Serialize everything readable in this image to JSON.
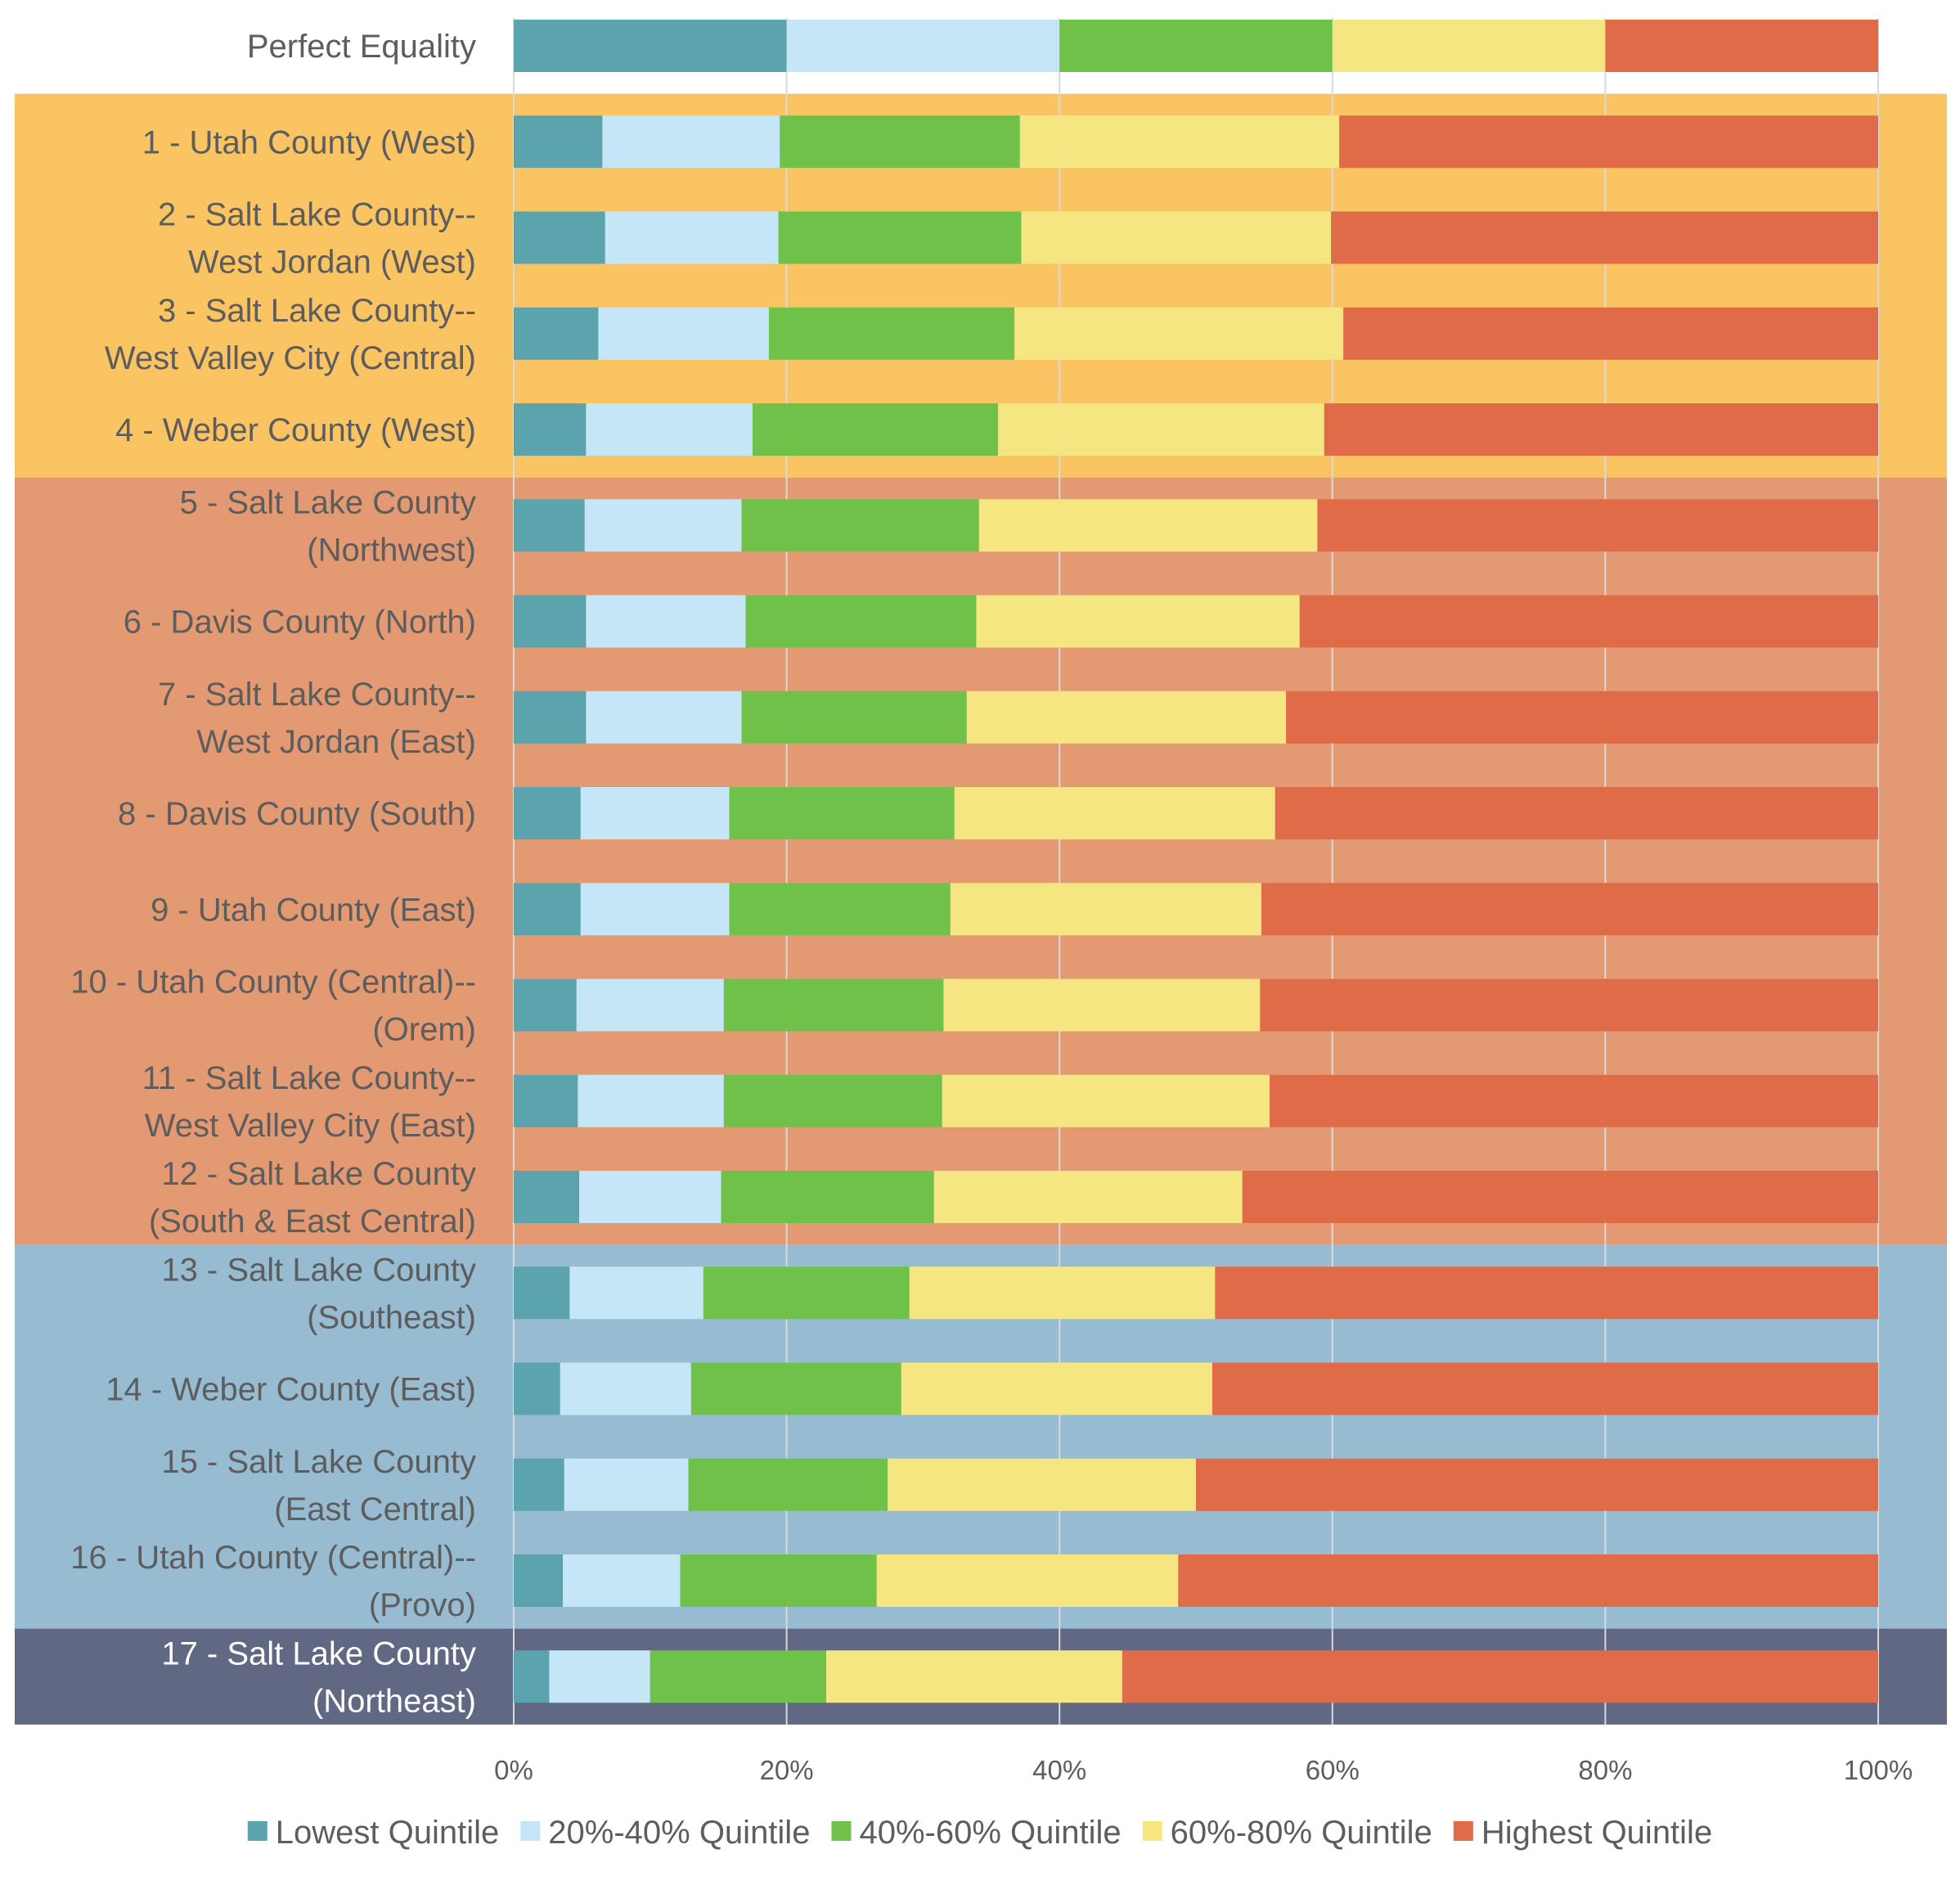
{
  "chart_data": {
    "type": "bar",
    "orientation": "horizontal",
    "stacked": true,
    "title": "",
    "xlabel": "",
    "ylabel": "",
    "xlim": [
      0,
      100
    ],
    "x_ticks": [
      "0%",
      "20%",
      "40%",
      "60%",
      "80%",
      "100%"
    ],
    "grid": true,
    "legend_position": "bottom",
    "categories": [
      [
        "Perfect Equality"
      ],
      [
        "1 - Utah County (West)"
      ],
      [
        "2 - Salt Lake County--",
        "West Jordan (West)"
      ],
      [
        "3 - Salt Lake County--",
        "West Valley City (Central)"
      ],
      [
        "4 - Weber County (West)"
      ],
      [
        "5 - Salt Lake County",
        "(Northwest)"
      ],
      [
        "6 - Davis County (North)"
      ],
      [
        "7 - Salt Lake County--",
        "West Jordan (East)"
      ],
      [
        "8 - Davis County (South)"
      ],
      [
        "9 - Utah County (East)"
      ],
      [
        "10 - Utah County (Central)--",
        "(Orem)"
      ],
      [
        "11 - Salt Lake County--",
        "West Valley City (East)"
      ],
      [
        "12 - Salt Lake County",
        "(South & East Central)"
      ],
      [
        "13 - Salt Lake County",
        "(Southeast)"
      ],
      [
        "14 - Weber County (East)"
      ],
      [
        "15 - Salt Lake County",
        "(East Central)"
      ],
      [
        "16 - Utah County (Central)--",
        "(Provo)"
      ],
      [
        "17 - Salt Lake County",
        "(Northeast)"
      ]
    ],
    "series": [
      {
        "name": "Lowest Quintile",
        "color": "#5ba4ad",
        "values": [
          20,
          6.5,
          6.7,
          6.2,
          5.3,
          5.2,
          5.3,
          5.3,
          4.9,
          4.9,
          4.6,
          4.7,
          4.8,
          4.1,
          3.4,
          3.7,
          3.6,
          2.6
        ]
      },
      {
        "name": "20%-40% Quintile",
        "color": "#c5e6f7",
        "values": [
          20,
          13.0,
          12.7,
          12.5,
          12.2,
          11.5,
          11.7,
          11.4,
          10.9,
          10.9,
          10.8,
          10.7,
          10.4,
          9.8,
          9.6,
          9.1,
          8.6,
          7.4
        ]
      },
      {
        "name": "40%-60% Quintile",
        "color": "#6fc14a",
        "values": [
          20,
          17.6,
          17.8,
          18.0,
          18.0,
          17.4,
          16.9,
          16.5,
          16.5,
          16.2,
          16.1,
          16.0,
          15.6,
          15.1,
          15.4,
          14.6,
          14.4,
          12.9
        ]
      },
      {
        "name": "60%-80% Quintile",
        "color": "#f5e682",
        "values": [
          20,
          23.4,
          22.7,
          24.1,
          23.9,
          24.8,
          23.7,
          23.4,
          23.5,
          22.8,
          23.2,
          24.0,
          22.6,
          22.4,
          22.8,
          22.6,
          22.1,
          21.7
        ]
      },
      {
        "name": "Highest Quintile",
        "color": "#e06b48",
        "values": [
          20,
          39.5,
          40.1,
          39.2,
          40.6,
          41.1,
          42.4,
          43.4,
          44.2,
          45.2,
          45.3,
          44.6,
          46.6,
          48.6,
          48.8,
          50.0,
          51.3,
          55.4
        ]
      }
    ],
    "groups": [
      {
        "rows": [
          1,
          4
        ],
        "color": "#fbc463"
      },
      {
        "rows": [
          5,
          12
        ],
        "color": "#e39a72"
      },
      {
        "rows": [
          13,
          16
        ],
        "color": "#97bcd2"
      },
      {
        "rows": [
          17,
          17
        ],
        "color": "#606883"
      }
    ],
    "colors": {
      "label_text": "#5d5d5d",
      "dark_label_text": "#ffffff",
      "gridline": "#d9d9d9"
    }
  }
}
